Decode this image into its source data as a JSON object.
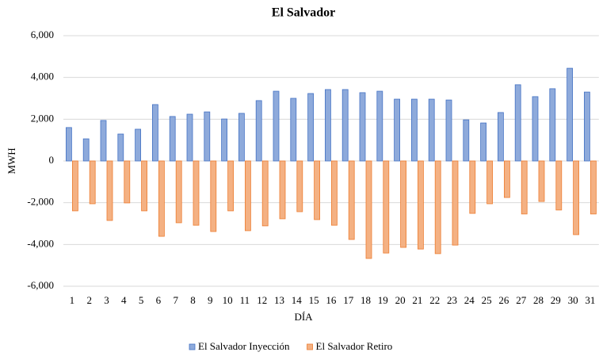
{
  "chart_data": {
    "type": "bar",
    "title": "El Salvador",
    "x_label": "DÍA",
    "y_label": "MWH",
    "categories": [
      "1",
      "2",
      "3",
      "4",
      "5",
      "6",
      "7",
      "8",
      "9",
      "10",
      "11",
      "12",
      "13",
      "14",
      "15",
      "16",
      "17",
      "18",
      "19",
      "20",
      "21",
      "22",
      "23",
      "24",
      "25",
      "26",
      "27",
      "28",
      "29",
      "30",
      "31"
    ],
    "series": [
      {
        "name": "El Salvador Inyección",
        "color": "#8eaadb",
        "stroke": "#4472c4",
        "values": [
          1600,
          1060,
          1940,
          1290,
          1520,
          2700,
          2130,
          2240,
          2350,
          2010,
          2280,
          2890,
          3340,
          3000,
          3230,
          3420,
          3420,
          3270,
          3340,
          2960,
          2960,
          2960,
          2920,
          1970,
          1820,
          2320,
          3650,
          3080,
          3460,
          4440,
          3300
        ]
      },
      {
        "name": "El Salvador Retiro",
        "color": "#f4b183",
        "stroke": "#ed7d31",
        "values": [
          -2390,
          -2050,
          -2850,
          -2010,
          -2390,
          -3610,
          -2960,
          -3080,
          -3380,
          -2390,
          -3340,
          -3110,
          -2770,
          -2430,
          -2810,
          -3080,
          -3760,
          -4670,
          -4410,
          -4140,
          -4220,
          -4440,
          -4030,
          -2510,
          -2050,
          -1750,
          -2540,
          -1940,
          -2350,
          -3530,
          -2540
        ]
      }
    ],
    "ylim": [
      -6000,
      6000
    ],
    "yticks": [
      {
        "value": -6000,
        "label": "-6,000"
      },
      {
        "value": -4000,
        "label": "-4,000"
      },
      {
        "value": -2000,
        "label": "-2,000"
      },
      0,
      {
        "value": 2000,
        "label": "2,000"
      },
      {
        "value": 4000,
        "label": "4,000"
      },
      {
        "value": 6000,
        "label": "6,000"
      }
    ],
    "grid": true,
    "legend": "bottom"
  }
}
